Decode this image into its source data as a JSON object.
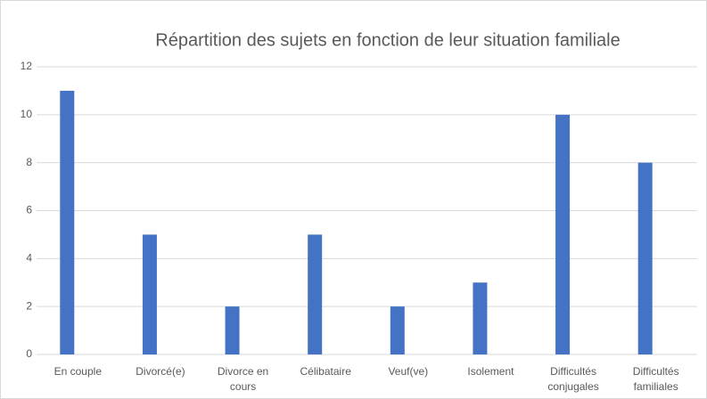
{
  "chart_data": {
    "type": "bar",
    "title": "Répartition des sujets en fonction de leur situation familiale",
    "categories": [
      "En couple",
      "Divorcé(e)",
      "Divorce en cours",
      "Célibataire",
      "Veuf(ve)",
      "Isolement",
      "Difficultés conjugales",
      "Difficultés familiales"
    ],
    "values": [
      11,
      5,
      2,
      5,
      2,
      3,
      10,
      8
    ],
    "color": "#4472c4",
    "ylim": [
      0,
      12
    ],
    "yticks": [
      0,
      2,
      4,
      6,
      8,
      10,
      12
    ],
    "grid": true
  }
}
